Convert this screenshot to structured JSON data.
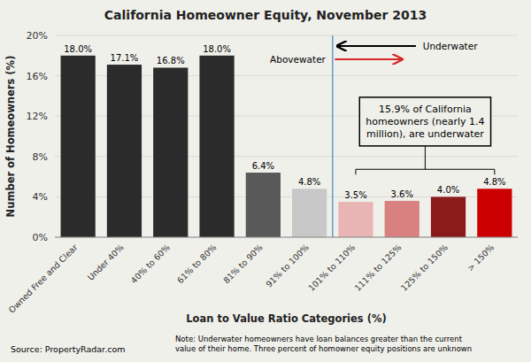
{
  "chart_data": {
    "type": "bar",
    "title": "California Homeowner Equity, November 2013",
    "x_label": "Loan to Value Ratio Categories (%)",
    "y_label": "Number of Homeowners (%)",
    "categories": [
      "Owned Free and Clear",
      "Under 40%",
      "40% to 60%",
      "61% to 80%",
      "81% to 90%",
      "91% to 100%",
      "101% to 110%",
      "111% to 125%",
      "125% to 150%",
      "> 150%"
    ],
    "values": [
      18.0,
      17.1,
      16.8,
      18.0,
      6.4,
      4.8,
      3.5,
      3.6,
      4.0,
      4.8
    ],
    "value_labels": [
      "18.0%",
      "17.1%",
      "16.8%",
      "18.0%",
      "6.4%",
      "4.8%",
      "3.5%",
      "3.6%",
      "4.0%",
      "4.8%"
    ],
    "colors": [
      "#2b2b2b",
      "#2b2b2b",
      "#2b2b2b",
      "#2b2b2b",
      "#595959",
      "#c8c8c8",
      "#e8b4b4",
      "#d98080",
      "#8b1a1a",
      "#cc0000"
    ],
    "ylim": [
      0,
      20
    ],
    "yticks": [
      {
        "value": 0,
        "label": "0%"
      },
      {
        "value": 4,
        "label": "4%"
      },
      {
        "value": 8,
        "label": "8%"
      },
      {
        "value": 12,
        "label": "12%"
      },
      {
        "value": 16,
        "label": "16%"
      },
      {
        "value": 20,
        "label": "20%"
      }
    ],
    "grid": true,
    "data_labels": true,
    "annotations": [
      "Underwater",
      "Abovewater",
      "15.9% of California\nhomeowners (nearly 1.4\nmillion), are underwater",
      "Source: PropertyRadar.com",
      "Note: Underwater homeowners have loan balances greater than the current\nvalue of their home. Three percent of homowner equity positions are unknown"
    ]
  }
}
